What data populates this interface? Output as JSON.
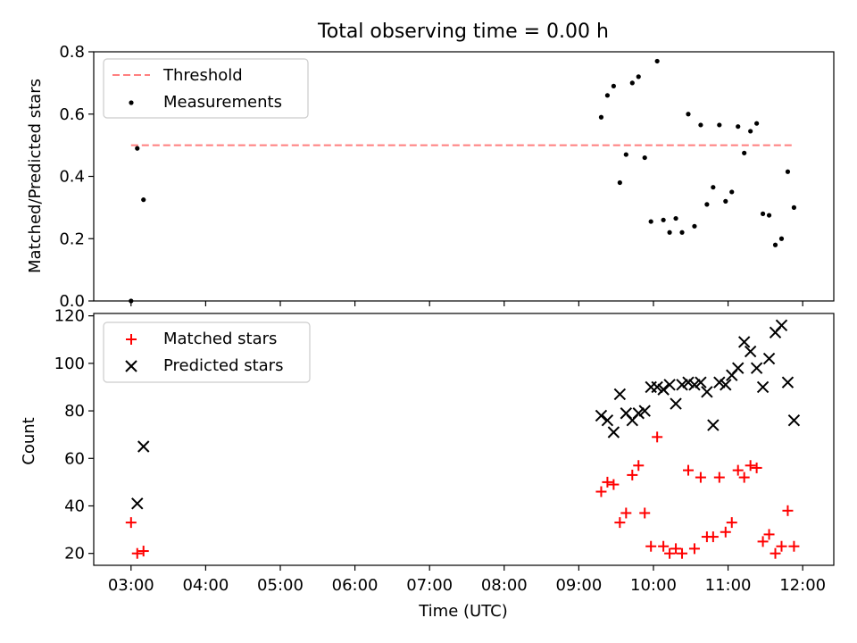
{
  "title": "Total observing time = 0.00 h",
  "chart_data": [
    {
      "type": "scatter",
      "ylabel": "Matched/Predicted stars",
      "ylim": [
        0,
        0.8
      ],
      "yticks": [
        "0.0",
        "0.2",
        "0.4",
        "0.6",
        "0.8"
      ],
      "legend": {
        "placement": "upper-left",
        "entries": [
          "Threshold",
          "Measurements"
        ]
      },
      "threshold": {
        "name": "Threshold",
        "value": 0.5,
        "color": "#ff7f7f",
        "style": "dashed"
      },
      "series": [
        {
          "name": "Measurements",
          "color": "#000000",
          "marker": "dot",
          "points": [
            [
              "03:00",
              0.0
            ],
            [
              "03:05",
              0.49
            ],
            [
              "03:10",
              0.325
            ],
            [
              "09:18",
              0.59
            ],
            [
              "09:23",
              0.66
            ],
            [
              "09:28",
              0.69
            ],
            [
              "09:33",
              0.38
            ],
            [
              "09:38",
              0.47
            ],
            [
              "09:43",
              0.7
            ],
            [
              "09:48",
              0.72
            ],
            [
              "09:53",
              0.46
            ],
            [
              "09:58",
              0.255
            ],
            [
              "10:03",
              0.77
            ],
            [
              "10:08",
              0.26
            ],
            [
              "10:13",
              0.22
            ],
            [
              "10:18",
              0.265
            ],
            [
              "10:23",
              0.22
            ],
            [
              "10:28",
              0.6
            ],
            [
              "10:33",
              0.24
            ],
            [
              "10:38",
              0.565
            ],
            [
              "10:43",
              0.31
            ],
            [
              "10:48",
              0.365
            ],
            [
              "10:53",
              0.565
            ],
            [
              "10:58",
              0.32
            ],
            [
              "11:03",
              0.35
            ],
            [
              "11:08",
              0.56
            ],
            [
              "11:13",
              0.475
            ],
            [
              "11:18",
              0.545
            ],
            [
              "11:23",
              0.57
            ],
            [
              "11:28",
              0.28
            ],
            [
              "11:33",
              0.275
            ],
            [
              "11:38",
              0.18
            ],
            [
              "11:43",
              0.2
            ],
            [
              "11:48",
              0.415
            ],
            [
              "11:53",
              0.3
            ]
          ]
        }
      ]
    },
    {
      "type": "scatter",
      "xlabel": "Time (UTC)",
      "ylabel": "Count",
      "ylim": [
        15,
        121
      ],
      "yticks": [
        "20",
        "40",
        "60",
        "80",
        "100",
        "120"
      ],
      "xlim": [
        "02:30",
        "12:25"
      ],
      "xticks": [
        "03:00",
        "04:00",
        "05:00",
        "06:00",
        "07:00",
        "08:00",
        "09:00",
        "10:00",
        "11:00",
        "12:00"
      ],
      "legend": {
        "placement": "upper-left",
        "entries": [
          "Matched stars",
          "Predicted stars"
        ]
      },
      "series": [
        {
          "name": "Matched stars",
          "color": "#ff0000",
          "marker": "plus",
          "points": [
            [
              "03:00",
              33
            ],
            [
              "03:05",
              20
            ],
            [
              "03:10",
              21
            ],
            [
              "09:18",
              46
            ],
            [
              "09:23",
              50
            ],
            [
              "09:28",
              49
            ],
            [
              "09:33",
              33
            ],
            [
              "09:38",
              37
            ],
            [
              "09:43",
              53
            ],
            [
              "09:48",
              57
            ],
            [
              "09:53",
              37
            ],
            [
              "09:58",
              23
            ],
            [
              "10:03",
              69
            ],
            [
              "10:08",
              23
            ],
            [
              "10:13",
              20
            ],
            [
              "10:18",
              22
            ],
            [
              "10:23",
              20
            ],
            [
              "10:28",
              55
            ],
            [
              "10:33",
              22
            ],
            [
              "10:38",
              52
            ],
            [
              "10:43",
              27
            ],
            [
              "10:48",
              27
            ],
            [
              "10:53",
              52
            ],
            [
              "10:58",
              29
            ],
            [
              "11:03",
              33
            ],
            [
              "11:08",
              55
            ],
            [
              "11:13",
              52
            ],
            [
              "11:18",
              57
            ],
            [
              "11:23",
              56
            ],
            [
              "11:28",
              25
            ],
            [
              "11:33",
              28
            ],
            [
              "11:38",
              20
            ],
            [
              "11:43",
              23
            ],
            [
              "11:48",
              38
            ],
            [
              "11:53",
              23
            ]
          ]
        },
        {
          "name": "Predicted stars",
          "color": "#000000",
          "marker": "x",
          "points": [
            [
              "03:05",
              41
            ],
            [
              "03:10",
              65
            ],
            [
              "09:18",
              78
            ],
            [
              "09:23",
              76
            ],
            [
              "09:28",
              71
            ],
            [
              "09:33",
              87
            ],
            [
              "09:38",
              79
            ],
            [
              "09:43",
              76
            ],
            [
              "09:48",
              79
            ],
            [
              "09:53",
              80
            ],
            [
              "09:58",
              90
            ],
            [
              "10:03",
              90
            ],
            [
              "10:08",
              89
            ],
            [
              "10:13",
              91
            ],
            [
              "10:18",
              83
            ],
            [
              "10:23",
              91
            ],
            [
              "10:28",
              92
            ],
            [
              "10:33",
              91
            ],
            [
              "10:38",
              92
            ],
            [
              "10:43",
              88
            ],
            [
              "10:48",
              74
            ],
            [
              "10:53",
              92
            ],
            [
              "10:58",
              91
            ],
            [
              "11:03",
              95
            ],
            [
              "11:08",
              98
            ],
            [
              "11:13",
              109
            ],
            [
              "11:18",
              105
            ],
            [
              "11:23",
              98
            ],
            [
              "11:28",
              90
            ],
            [
              "11:33",
              102
            ],
            [
              "11:38",
              113
            ],
            [
              "11:43",
              116
            ],
            [
              "11:48",
              92
            ],
            [
              "11:53",
              76
            ]
          ]
        }
      ]
    }
  ]
}
